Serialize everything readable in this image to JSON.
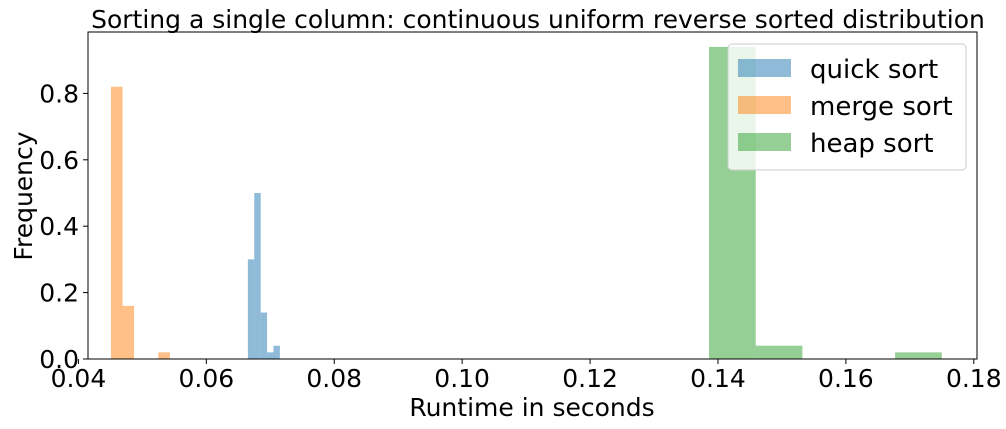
{
  "chart_data": {
    "type": "histogram",
    "title": "Sorting a single column: continuous uniform reverse sorted distribution",
    "xlabel": "Runtime in seconds",
    "ylabel": "Frequency",
    "xlim": [
      0.0415,
      0.1805
    ],
    "ylim": [
      0.0,
      0.985
    ],
    "xticks": [
      "0.04",
      "0.06",
      "0.08",
      "0.10",
      "0.12",
      "0.14",
      "0.16",
      "0.18"
    ],
    "yticks": [
      "0.0",
      "0.2",
      "0.4",
      "0.6",
      "0.8"
    ],
    "grid": false,
    "legend_position": "top-right",
    "series": [
      {
        "name": "quick sort",
        "color": "#1f77b4",
        "bins": [
          {
            "x0": 0.0665,
            "x1": 0.0675,
            "value": 0.3
          },
          {
            "x0": 0.0675,
            "x1": 0.0685,
            "value": 0.5
          },
          {
            "x0": 0.0685,
            "x1": 0.0695,
            "value": 0.14
          },
          {
            "x0": 0.0695,
            "x1": 0.0705,
            "value": 0.02
          },
          {
            "x0": 0.0705,
            "x1": 0.0715,
            "value": 0.04
          }
        ]
      },
      {
        "name": "merge sort",
        "color": "#ff7f0e",
        "bins": [
          {
            "x0": 0.0451,
            "x1": 0.0469,
            "value": 0.82
          },
          {
            "x0": 0.0469,
            "x1": 0.0487,
            "value": 0.16
          },
          {
            "x0": 0.0525,
            "x1": 0.0543,
            "value": 0.02
          }
        ]
      },
      {
        "name": "heap sort",
        "color": "#2ca02c",
        "bins": [
          {
            "x0": 0.1386,
            "x1": 0.1459,
            "value": 0.94
          },
          {
            "x0": 0.1459,
            "x1": 0.1532,
            "value": 0.04
          },
          {
            "x0": 0.1677,
            "x1": 0.175,
            "value": 0.02
          }
        ]
      }
    ]
  }
}
